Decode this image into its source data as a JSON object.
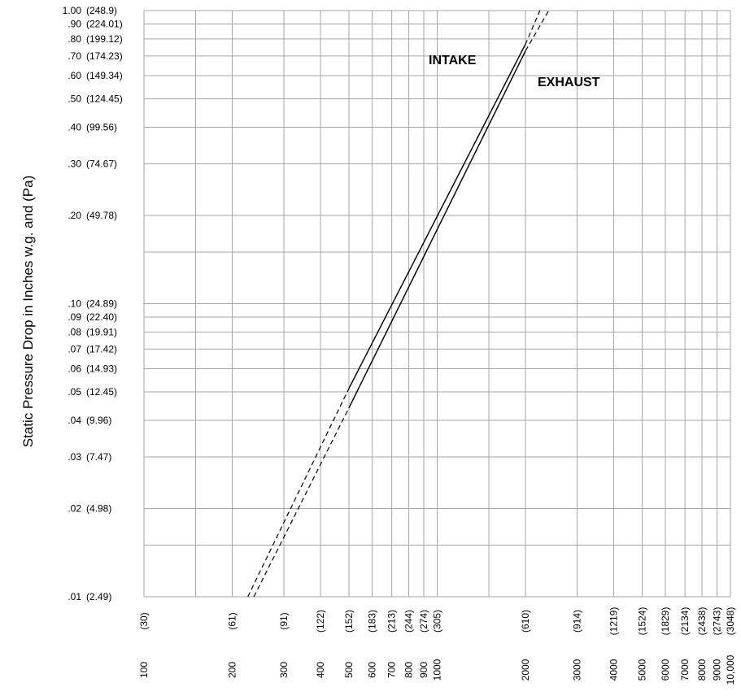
{
  "chart_data": {
    "type": "line",
    "xscale": "log",
    "yscale": "log",
    "xlim": [
      100,
      10000
    ],
    "ylim": [
      0.01,
      1.0
    ],
    "grid": true,
    "ylabel": "Static Pressure Drop in Inches w.g. and (Pa)",
    "xlabel": "",
    "yticks": [
      {
        "value": 1.0,
        "label": "1.00",
        "sub": "(248.9)"
      },
      {
        "value": 0.9,
        "label": ".90",
        "sub": "(224.01)"
      },
      {
        "value": 0.8,
        "label": ".80",
        "sub": "(199.12)"
      },
      {
        "value": 0.7,
        "label": ".70",
        "sub": "(174.23)"
      },
      {
        "value": 0.6,
        "label": ".60",
        "sub": "(149.34)"
      },
      {
        "value": 0.5,
        "label": ".50",
        "sub": "(124.45)"
      },
      {
        "value": 0.4,
        "label": ".40",
        "sub": "(99.56)"
      },
      {
        "value": 0.3,
        "label": ".30",
        "sub": "(74.67)"
      },
      {
        "value": 0.2,
        "label": ".20",
        "sub": "(49.78)"
      },
      {
        "value": 0.1,
        "label": ".10",
        "sub": "(24.89)"
      },
      {
        "value": 0.09,
        "label": ".09",
        "sub": "(22.40)"
      },
      {
        "value": 0.08,
        "label": ".08",
        "sub": "(19.91)"
      },
      {
        "value": 0.07,
        "label": ".07",
        "sub": "(17.42)"
      },
      {
        "value": 0.06,
        "label": ".06",
        "sub": "(14.93)"
      },
      {
        "value": 0.05,
        "label": ".05",
        "sub": "(12.45)"
      },
      {
        "value": 0.04,
        "label": ".04",
        "sub": "(9.96)"
      },
      {
        "value": 0.03,
        "label": ".03",
        "sub": "(7.47)"
      },
      {
        "value": 0.02,
        "label": ".02",
        "sub": "(4.98)"
      },
      {
        "value": 0.01,
        "label": ".01",
        "sub": "(2.49)"
      }
    ],
    "y_gridlines": [
      1.0,
      0.9,
      0.8,
      0.7,
      0.6,
      0.5,
      0.4,
      0.3,
      0.2,
      0.15,
      0.1,
      0.09,
      0.08,
      0.07,
      0.06,
      0.05,
      0.04,
      0.03,
      0.02,
      0.015,
      0.01
    ],
    "xticks": [
      {
        "value": 100,
        "label": "100",
        "sub": "(30)"
      },
      {
        "value": 200,
        "label": "200",
        "sub": "(61)"
      },
      {
        "value": 300,
        "label": "300",
        "sub": "(91)"
      },
      {
        "value": 400,
        "label": "400",
        "sub": "(122)"
      },
      {
        "value": 500,
        "label": "500",
        "sub": "(152)"
      },
      {
        "value": 600,
        "label": "600",
        "sub": "(183)"
      },
      {
        "value": 700,
        "label": "700",
        "sub": "(213)"
      },
      {
        "value": 800,
        "label": "800",
        "sub": "(244)"
      },
      {
        "value": 900,
        "label": "900",
        "sub": "(274)"
      },
      {
        "value": 1000,
        "label": "1000",
        "sub": "(305)"
      },
      {
        "value": 2000,
        "label": "2000",
        "sub": "(610)"
      },
      {
        "value": 3000,
        "label": "3000",
        "sub": "(914)"
      },
      {
        "value": 4000,
        "label": "4000",
        "sub": "(1219)"
      },
      {
        "value": 5000,
        "label": "5000",
        "sub": "(1524)"
      },
      {
        "value": 6000,
        "label": "6000",
        "sub": "(1829)"
      },
      {
        "value": 7000,
        "label": "7000",
        "sub": "(2134)"
      },
      {
        "value": 8000,
        "label": "8000",
        "sub": "(2438)"
      },
      {
        "value": 9000,
        "label": "9000",
        "sub": "(2743)"
      },
      {
        "value": 10000,
        "label": "10,000",
        "sub": "(3048)"
      }
    ],
    "x_gridlines": [
      100,
      150,
      200,
      300,
      400,
      500,
      600,
      700,
      800,
      900,
      1000,
      1500,
      2000,
      3000,
      4000,
      5000,
      6000,
      7000,
      8000,
      9000,
      10000
    ],
    "series": [
      {
        "name": "INTAKE",
        "color": "#000000",
        "solid": [
          [
            500,
            0.0514
          ],
          [
            2000,
            0.768
          ]
        ],
        "dashed": [
          [
            226,
            0.01
          ],
          [
            500,
            0.0514
          ],
          [
            2000,
            0.768
          ],
          [
            2240,
            1.0
          ]
        ]
      },
      {
        "name": "EXHAUST",
        "color": "#000000",
        "solid": [
          [
            500,
            0.0441
          ],
          [
            2000,
            0.728
          ]
        ],
        "dashed": [
          [
            237,
            0.01
          ],
          [
            500,
            0.0441
          ],
          [
            2000,
            0.728
          ],
          [
            2400,
            1.0
          ]
        ]
      }
    ]
  }
}
